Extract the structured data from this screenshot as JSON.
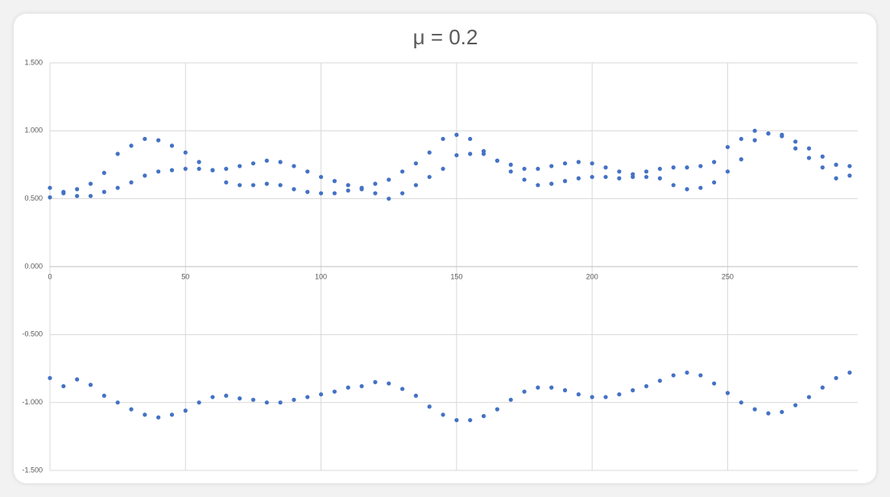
{
  "chart_data": {
    "type": "scatter",
    "title": "μ = 0.2",
    "x": [
      0,
      5,
      10,
      15,
      20,
      25,
      30,
      35,
      40,
      45,
      50,
      55,
      60,
      65,
      70,
      75,
      80,
      85,
      90,
      95,
      100,
      105,
      110,
      115,
      120,
      125,
      130,
      135,
      140,
      145,
      150,
      155,
      160,
      165,
      170,
      175,
      180,
      185,
      190,
      195,
      200,
      205,
      210,
      215,
      220,
      225,
      230,
      235,
      240,
      245,
      250,
      255,
      260,
      265,
      270,
      275,
      280,
      285,
      290,
      295
    ],
    "series": [
      {
        "color": "#4472c4",
        "values": [
          0.51,
          0.54,
          0.52,
          0.52,
          0.69,
          0.83,
          0.89,
          0.94,
          0.93,
          0.89,
          0.84,
          0.72,
          0.71,
          0.62,
          0.6,
          0.6,
          0.61,
          0.6,
          0.57,
          0.55,
          0.54,
          0.54,
          0.56,
          0.58,
          0.54,
          0.5,
          0.54,
          0.6,
          0.66,
          0.72,
          0.82,
          0.83,
          0.83,
          0.78,
          0.7,
          0.64,
          0.6,
          0.61,
          0.63,
          0.65,
          0.66,
          0.66,
          0.65,
          0.66,
          0.66,
          0.65,
          0.6,
          0.57,
          0.58,
          0.62,
          0.7,
          0.79,
          0.93,
          0.98,
          0.96,
          0.87,
          0.8,
          0.73,
          0.65,
          0.67
        ]
      },
      {
        "color": "#4472c4",
        "values": [
          0.58,
          0.55,
          0.57,
          0.61,
          0.55,
          0.58,
          0.62,
          0.67,
          0.7,
          0.71,
          0.72,
          0.77,
          0.71,
          0.72,
          0.74,
          0.76,
          0.78,
          0.77,
          0.74,
          0.7,
          0.66,
          0.63,
          0.6,
          0.57,
          0.61,
          0.64,
          0.7,
          0.76,
          0.84,
          0.94,
          0.97,
          0.94,
          0.85,
          0.78,
          0.75,
          0.72,
          0.72,
          0.74,
          0.76,
          0.77,
          0.76,
          0.73,
          0.7,
          0.68,
          0.7,
          0.72,
          0.73,
          0.73,
          0.74,
          0.77,
          0.88,
          0.94,
          1.0,
          0.98,
          0.97,
          0.92,
          0.87,
          0.81,
          0.75,
          0.74
        ]
      },
      {
        "color": "#4472c4",
        "values": [
          -0.82,
          -0.88,
          -0.83,
          -0.87,
          -0.95,
          -1.0,
          -1.05,
          -1.09,
          -1.11,
          -1.09,
          -1.06,
          -1.0,
          -0.96,
          -0.95,
          -0.97,
          -0.98,
          -1.0,
          -1.0,
          -0.98,
          -0.96,
          -0.94,
          -0.92,
          -0.89,
          -0.88,
          -0.85,
          -0.86,
          -0.9,
          -0.95,
          -1.03,
          -1.09,
          -1.13,
          -1.13,
          -1.1,
          -1.05,
          -0.98,
          -0.92,
          -0.89,
          -0.89,
          -0.91,
          -0.94,
          -0.96,
          -0.96,
          -0.94,
          -0.91,
          -0.88,
          -0.84,
          -0.8,
          -0.78,
          -0.8,
          -0.86,
          -0.93,
          -1.0,
          -1.05,
          -1.08,
          -1.07,
          -1.02,
          -0.96,
          -0.89,
          -0.82,
          -0.78
        ]
      }
    ],
    "xlim": [
      0,
      298
    ],
    "xticks": [
      0,
      50,
      100,
      150,
      200,
      250
    ],
    "ylim": [
      -1.5,
      1.5
    ],
    "yticks": [
      {
        "value": -1.5,
        "label": "-1.500"
      },
      {
        "value": -1,
        "label": "-1.000"
      },
      {
        "value": -0.5,
        "label": "-0.500"
      },
      {
        "value": 0,
        "label": "0.000"
      },
      {
        "value": 0.5,
        "label": "0.500"
      },
      {
        "value": 1,
        "label": "1.000"
      },
      {
        "value": 1.5,
        "label": "1.500"
      }
    ],
    "grid": true
  }
}
